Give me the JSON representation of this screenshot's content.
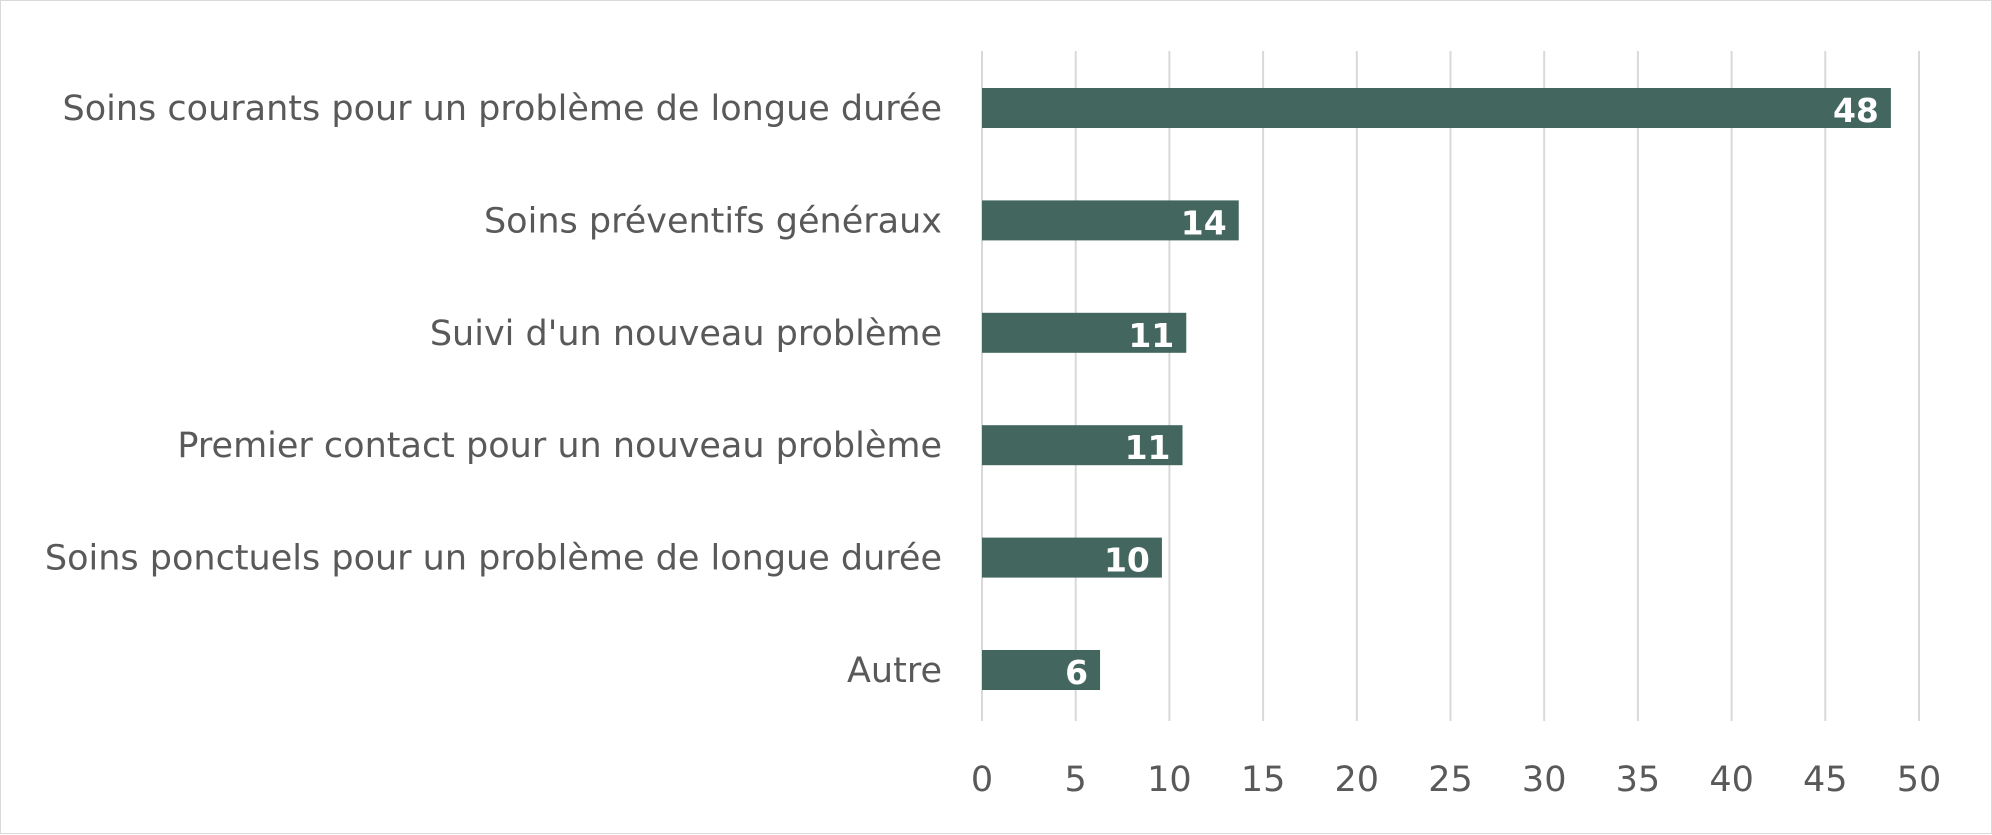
{
  "chart_data": {
    "type": "bar",
    "orientation": "horizontal",
    "categories": [
      "Soins courants pour un problème de longue durée",
      "Soins préventifs généraux",
      "Suivi d'un nouveau problème",
      "Premier contact pour un nouveau problème",
      "Soins ponctuels pour un problème de longue durée",
      "Autre"
    ],
    "values": [
      48.5,
      13.7,
      10.9,
      10.7,
      9.6,
      6.3
    ],
    "data_labels": [
      "48",
      "14",
      "11",
      "11",
      "10",
      "6"
    ],
    "xlim": [
      0,
      50
    ],
    "x_ticks": [
      "0",
      "5",
      "10",
      "15",
      "20",
      "25",
      "30",
      "35",
      "40",
      "45",
      "50"
    ],
    "grid": true,
    "bar_color": "#43665f",
    "title": "",
    "xlabel": "",
    "ylabel": ""
  }
}
